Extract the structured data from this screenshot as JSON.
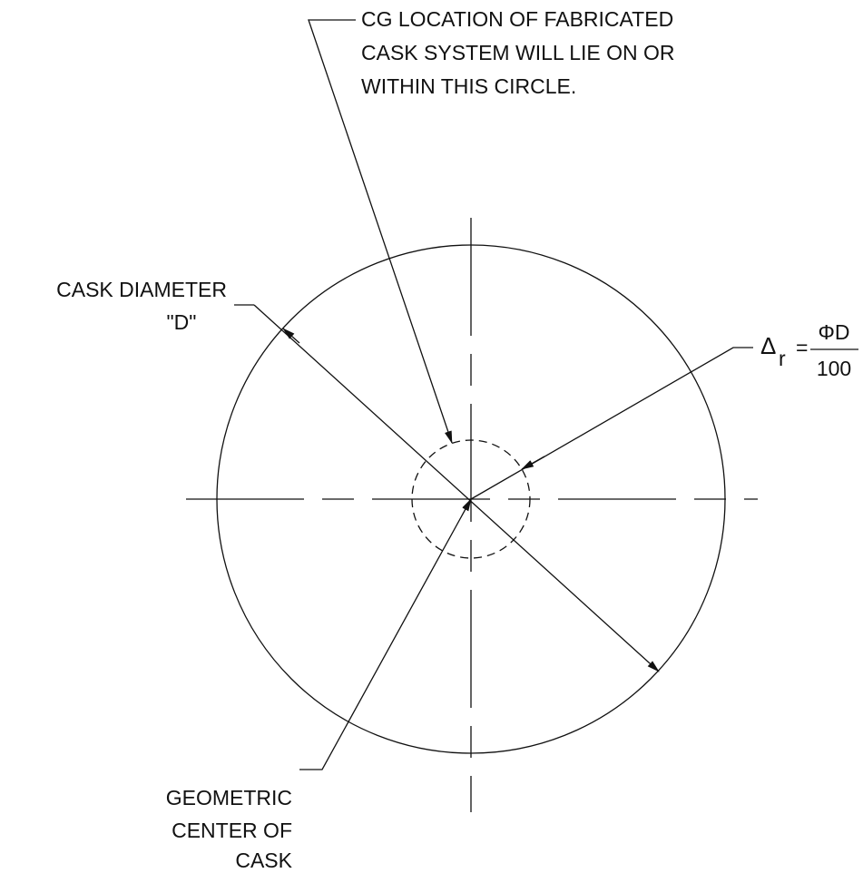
{
  "cg_note": {
    "lines": [
      "CG LOCATION OF FABRICATED",
      "CASK SYSTEM WILL LIE ON OR",
      "WITHIN THIS CIRCLE."
    ]
  },
  "diameter_note": {
    "lines": [
      "CASK DIAMETER",
      "\"D\""
    ]
  },
  "formula": {
    "symbol": "Δ",
    "subscript": "r",
    "equals": "=",
    "numerator": "ΦD",
    "denominator": "100"
  },
  "center_note": {
    "lines": [
      "GEOMETRIC",
      "CENTER OF",
      "CASK"
    ]
  }
}
